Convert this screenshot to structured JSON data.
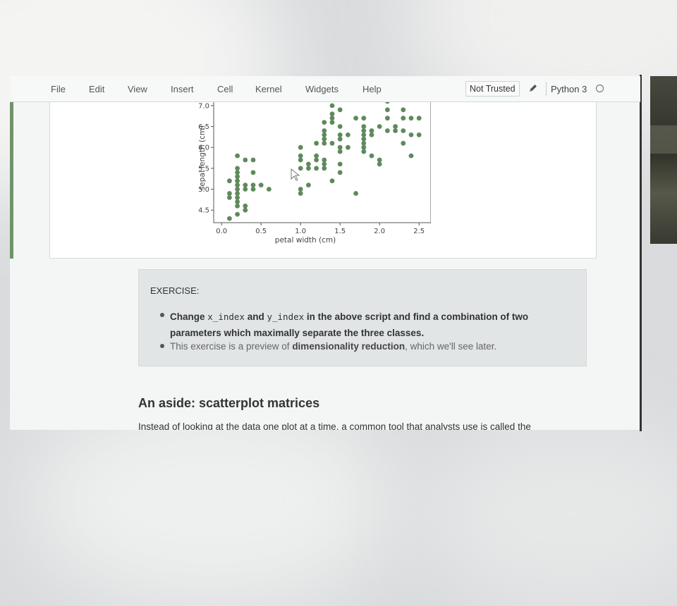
{
  "menubar": {
    "items": [
      "File",
      "Edit",
      "View",
      "Insert",
      "Cell",
      "Kernel",
      "Widgets",
      "Help"
    ],
    "trust_label": "Not Trusted",
    "kernel_name": "Python 3"
  },
  "chart_data": {
    "type": "scatter",
    "xlabel": "petal width (cm)",
    "ylabel": "sepal length (cm)",
    "x_ticks": [
      "0.0",
      "0.5",
      "1.0",
      "1.5",
      "2.0",
      "2.5"
    ],
    "y_ticks": [
      "4.5",
      "5.0",
      "5.5",
      "6.0",
      "6.5",
      "7.0"
    ],
    "xlim": [
      -0.1,
      2.65
    ],
    "ylim": [
      4.2,
      7.2
    ],
    "grid": false,
    "marker_color": "#5f8a5c",
    "points": [
      [
        0.1,
        4.3
      ],
      [
        0.1,
        4.8
      ],
      [
        0.1,
        4.9
      ],
      [
        0.1,
        5.2
      ],
      [
        0.2,
        4.4
      ],
      [
        0.2,
        4.6
      ],
      [
        0.2,
        4.7
      ],
      [
        0.2,
        4.8
      ],
      [
        0.2,
        4.9
      ],
      [
        0.2,
        5.0
      ],
      [
        0.2,
        5.1
      ],
      [
        0.2,
        5.2
      ],
      [
        0.2,
        5.3
      ],
      [
        0.2,
        5.4
      ],
      [
        0.2,
        5.5
      ],
      [
        0.2,
        5.8
      ],
      [
        0.3,
        4.5
      ],
      [
        0.3,
        4.6
      ],
      [
        0.3,
        5.0
      ],
      [
        0.3,
        5.1
      ],
      [
        0.3,
        5.7
      ],
      [
        0.4,
        5.0
      ],
      [
        0.4,
        5.1
      ],
      [
        0.4,
        5.4
      ],
      [
        0.4,
        5.7
      ],
      [
        0.5,
        5.1
      ],
      [
        0.6,
        5.0
      ],
      [
        1.0,
        4.9
      ],
      [
        1.0,
        5.0
      ],
      [
        1.0,
        5.5
      ],
      [
        1.0,
        5.7
      ],
      [
        1.0,
        5.8
      ],
      [
        1.0,
        6.0
      ],
      [
        1.1,
        5.1
      ],
      [
        1.1,
        5.5
      ],
      [
        1.1,
        5.6
      ],
      [
        1.2,
        5.5
      ],
      [
        1.2,
        5.7
      ],
      [
        1.2,
        5.8
      ],
      [
        1.2,
        6.1
      ],
      [
        1.3,
        5.5
      ],
      [
        1.3,
        5.6
      ],
      [
        1.3,
        5.7
      ],
      [
        1.3,
        6.1
      ],
      [
        1.3,
        6.2
      ],
      [
        1.3,
        6.3
      ],
      [
        1.3,
        6.4
      ],
      [
        1.3,
        6.6
      ],
      [
        1.4,
        5.2
      ],
      [
        1.4,
        6.1
      ],
      [
        1.4,
        6.6
      ],
      [
        1.4,
        6.7
      ],
      [
        1.4,
        6.8
      ],
      [
        1.4,
        7.0
      ],
      [
        1.5,
        5.4
      ],
      [
        1.5,
        5.6
      ],
      [
        1.5,
        5.9
      ],
      [
        1.5,
        6.0
      ],
      [
        1.5,
        6.2
      ],
      [
        1.5,
        6.3
      ],
      [
        1.5,
        6.5
      ],
      [
        1.5,
        6.9
      ],
      [
        1.6,
        6.0
      ],
      [
        1.6,
        6.3
      ],
      [
        1.7,
        4.9
      ],
      [
        1.7,
        6.7
      ],
      [
        1.8,
        5.9
      ],
      [
        1.8,
        6.0
      ],
      [
        1.8,
        6.1
      ],
      [
        1.8,
        6.2
      ],
      [
        1.8,
        6.3
      ],
      [
        1.8,
        6.4
      ],
      [
        1.8,
        6.5
      ],
      [
        1.8,
        6.7
      ],
      [
        1.9,
        5.8
      ],
      [
        1.9,
        6.3
      ],
      [
        1.9,
        6.4
      ],
      [
        2.0,
        5.6
      ],
      [
        2.0,
        5.7
      ],
      [
        2.0,
        6.5
      ],
      [
        2.1,
        6.4
      ],
      [
        2.1,
        6.7
      ],
      [
        2.1,
        6.9
      ],
      [
        2.1,
        7.1
      ],
      [
        2.2,
        6.4
      ],
      [
        2.2,
        6.5
      ],
      [
        2.3,
        6.1
      ],
      [
        2.3,
        6.4
      ],
      [
        2.3,
        6.7
      ],
      [
        2.3,
        6.9
      ],
      [
        2.4,
        5.8
      ],
      [
        2.4,
        6.3
      ],
      [
        2.4,
        6.7
      ],
      [
        2.5,
        6.3
      ],
      [
        2.5,
        6.7
      ]
    ]
  },
  "exercise": {
    "title": "EXERCISE:",
    "item1_pre": "Change ",
    "item1_code1": "x_index",
    "item1_mid": " and ",
    "item1_code2": "y_index",
    "item1_post": " in the above script and find a combination of two parameters which maximally separate the three classes.",
    "item2_pre": "This exercise is a preview of ",
    "item2_bold": "dimensionality reduction",
    "item2_post": ", which we'll see later."
  },
  "aside": {
    "heading": "An aside: scatterplot matrices",
    "text": "Instead of looking at the data one plot at a time, a common tool that analysts use is called the"
  }
}
